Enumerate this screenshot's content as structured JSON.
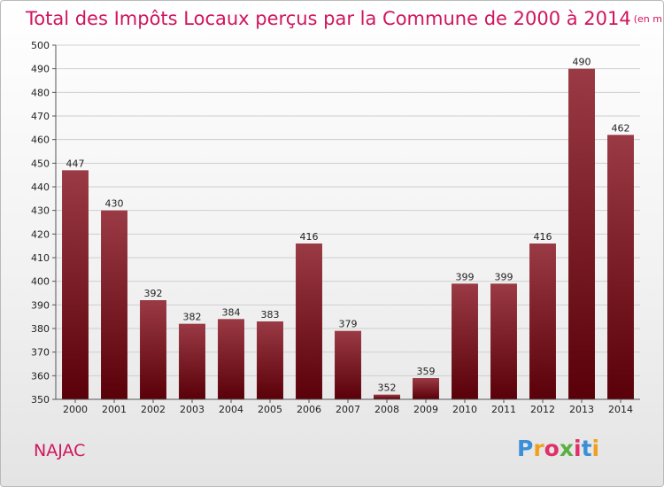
{
  "chart_data": {
    "type": "bar",
    "title": "Total des Impôts Locaux perçus par la Commune de 2000 à 2014",
    "unit_note": "(en milliers d'€)",
    "categories": [
      "2000",
      "2001",
      "2002",
      "2003",
      "2004",
      "2005",
      "2006",
      "2007",
      "2008",
      "2009",
      "2010",
      "2011",
      "2012",
      "2013",
      "2014"
    ],
    "values": [
      447,
      430,
      392,
      382,
      384,
      383,
      416,
      379,
      352,
      359,
      399,
      399,
      416,
      490,
      462
    ],
    "ylim": [
      350,
      500
    ],
    "yticks": [
      350,
      360,
      370,
      380,
      390,
      400,
      410,
      420,
      430,
      440,
      450,
      460,
      470,
      480,
      490,
      500
    ],
    "grid": true,
    "xlabel": "",
    "ylabel": ""
  },
  "commune": "NAJAC",
  "logo": {
    "text": "Proxiti",
    "letter_colors": [
      "#3a8fd8",
      "#f0a020",
      "#e0306a",
      "#5ab040",
      "#e0306a",
      "#3a8fd8",
      "#f0a020"
    ]
  },
  "colors": {
    "bar_top": "#9a3a44",
    "bar_bottom": "#5a0008",
    "title": "#d0155e",
    "grid": "#cfcfcf"
  }
}
